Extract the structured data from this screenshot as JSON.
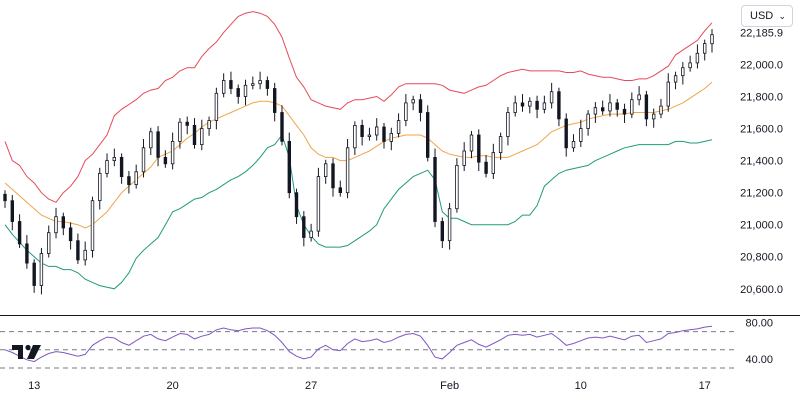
{
  "toolbar": {
    "currency_label": "USD",
    "chevron_icon": "chevron-down-icon"
  },
  "logo": {
    "icon": "tradingview-logo-icon"
  },
  "chart_data": {
    "type": "candlestick",
    "x_ticks": [
      "13",
      "20",
      "27",
      "Feb",
      "10",
      "17"
    ],
    "y_ticks": [
      20600,
      20800,
      21000,
      21200,
      21400,
      21600,
      21800,
      22000,
      22200
    ],
    "y_tick_labels": [
      "20,600.0",
      "20,800.0",
      "21,000.0",
      "21,200.0",
      "21,400.0",
      "21,600.0",
      "21,800.0",
      "22,000.0",
      "22,185.9"
    ],
    "ylim": [
      20530,
      22340
    ],
    "candle_close": [
      21150,
      21020,
      20880,
      20760,
      20620,
      20820,
      20950,
      21050,
      20980,
      20900,
      20780,
      20840,
      21150,
      21320,
      21400,
      21420,
      21300,
      21250,
      21330,
      21480,
      21580,
      21420,
      21380,
      21520,
      21640,
      21620,
      21500,
      21600,
      21650,
      21820,
      21900,
      21850,
      21800,
      21870,
      21880,
      21900,
      21850,
      21700,
      21520,
      21200,
      21050,
      20920,
      20960,
      21300,
      21380,
      21230,
      21200,
      21480,
      21620,
      21550,
      21560,
      21610,
      21520,
      21570,
      21650,
      21760,
      21780,
      21700,
      21420,
      21020,
      20900,
      21100,
      21370,
      21460,
      21560,
      21390,
      21320,
      21450,
      21550,
      21700,
      21760,
      21740,
      21770,
      21720,
      21760,
      21830,
      21660,
      21480,
      21520,
      21600,
      21690,
      21730,
      21710,
      21760,
      21720,
      21690,
      21780,
      21810,
      21660,
      21690,
      21740,
      21890,
      21930,
      21980,
      22010,
      22070,
      22130,
      22185.9
    ],
    "series": [
      {
        "name": "Upper",
        "color": "#e64a5a",
        "values": [
          21520,
          21400,
          21370,
          21300,
          21260,
          21200,
          21160,
          21140,
          21200,
          21240,
          21300,
          21400,
          21440,
          21500,
          21560,
          21680,
          21720,
          21750,
          21780,
          21820,
          21840,
          21850,
          21900,
          21920,
          21960,
          21980,
          21980,
          22050,
          22100,
          22140,
          22200,
          22250,
          22300,
          22320,
          22330,
          22320,
          22300,
          22250,
          22170,
          22040,
          21920,
          21860,
          21780,
          21760,
          21740,
          21730,
          21720,
          21760,
          21780,
          21780,
          21790,
          21800,
          21770,
          21810,
          21860,
          21880,
          21880,
          21880,
          21880,
          21880,
          21870,
          21840,
          21830,
          21820,
          21840,
          21860,
          21870,
          21900,
          21930,
          21950,
          21960,
          21970,
          21960,
          21960,
          21960,
          21960,
          21960,
          21950,
          21950,
          21960,
          21940,
          21930,
          21920,
          21920,
          21910,
          21900,
          21900,
          21910,
          21910,
          21930,
          21960,
          21990,
          22060,
          22090,
          22120,
          22150,
          22210,
          22260
        ]
      },
      {
        "name": "Basis",
        "color": "#f0a44b",
        "values": [
          21260,
          21220,
          21180,
          21140,
          21100,
          21060,
          21040,
          21020,
          21020,
          21010,
          21000,
          20980,
          21000,
          21040,
          21080,
          21140,
          21200,
          21240,
          21280,
          21320,
          21360,
          21420,
          21440,
          21460,
          21500,
          21540,
          21570,
          21610,
          21640,
          21660,
          21680,
          21700,
          21720,
          21740,
          21760,
          21770,
          21770,
          21760,
          21740,
          21680,
          21620,
          21560,
          21480,
          21440,
          21420,
          21420,
          21400,
          21400,
          21420,
          21440,
          21460,
          21490,
          21520,
          21540,
          21550,
          21560,
          21560,
          21560,
          21540,
          21500,
          21460,
          21440,
          21430,
          21420,
          21420,
          21430,
          21430,
          21420,
          21420,
          21420,
          21440,
          21460,
          21480,
          21500,
          21540,
          21580,
          21600,
          21620,
          21630,
          21640,
          21660,
          21670,
          21680,
          21690,
          21690,
          21690,
          21700,
          21700,
          21700,
          21700,
          21710,
          21720,
          21740,
          21760,
          21790,
          21820,
          21850,
          21890
        ]
      },
      {
        "name": "Lower",
        "color": "#1f9a7c",
        "values": [
          21000,
          20940,
          20890,
          20840,
          20800,
          20760,
          20740,
          20740,
          20720,
          20720,
          20700,
          20660,
          20640,
          20620,
          20610,
          20600,
          20640,
          20700,
          20790,
          20840,
          20880,
          20920,
          21000,
          21080,
          21100,
          21130,
          21160,
          21170,
          21200,
          21220,
          21250,
          21280,
          21300,
          21330,
          21370,
          21420,
          21480,
          21500,
          21560,
          21420,
          21120,
          21000,
          20930,
          20880,
          20860,
          20860,
          20860,
          20870,
          20900,
          20930,
          20960,
          21000,
          21100,
          21160,
          21220,
          21260,
          21300,
          21320,
          21340,
          21280,
          21080,
          21040,
          21040,
          21020,
          21000,
          21000,
          21000,
          21000,
          21000,
          21000,
          21020,
          21060,
          21060,
          21120,
          21240,
          21280,
          21320,
          21340,
          21350,
          21360,
          21370,
          21400,
          21420,
          21440,
          21460,
          21480,
          21490,
          21500,
          21500,
          21500,
          21500,
          21500,
          21520,
          21520,
          21510,
          21510,
          21520,
          21530
        ]
      }
    ],
    "rsi": {
      "ylim": [
        30,
        85
      ],
      "y_ticks": [
        40,
        80
      ],
      "y_tick_labels": [
        "40.00",
        "80.00"
      ],
      "levels": [
        70,
        50,
        30
      ],
      "color": "#7e57c2",
      "values": [
        50,
        47,
        43,
        39,
        37,
        42,
        46,
        48,
        47,
        45,
        43,
        45,
        55,
        60,
        64,
        63,
        58,
        55,
        60,
        65,
        67,
        62,
        60,
        64,
        68,
        67,
        62,
        65,
        67,
        72,
        74,
        72,
        71,
        73,
        74,
        74,
        71,
        66,
        58,
        48,
        43,
        40,
        42,
        51,
        55,
        50,
        49,
        57,
        62,
        59,
        60,
        62,
        58,
        60,
        64,
        67,
        68,
        65,
        55,
        42,
        40,
        47,
        55,
        58,
        61,
        56,
        53,
        57,
        61,
        66,
        67,
        66,
        67,
        64,
        66,
        68,
        62,
        55,
        57,
        60,
        63,
        64,
        63,
        65,
        63,
        61,
        65,
        66,
        58,
        60,
        62,
        68,
        69,
        71,
        72,
        73,
        75,
        76
      ]
    }
  }
}
